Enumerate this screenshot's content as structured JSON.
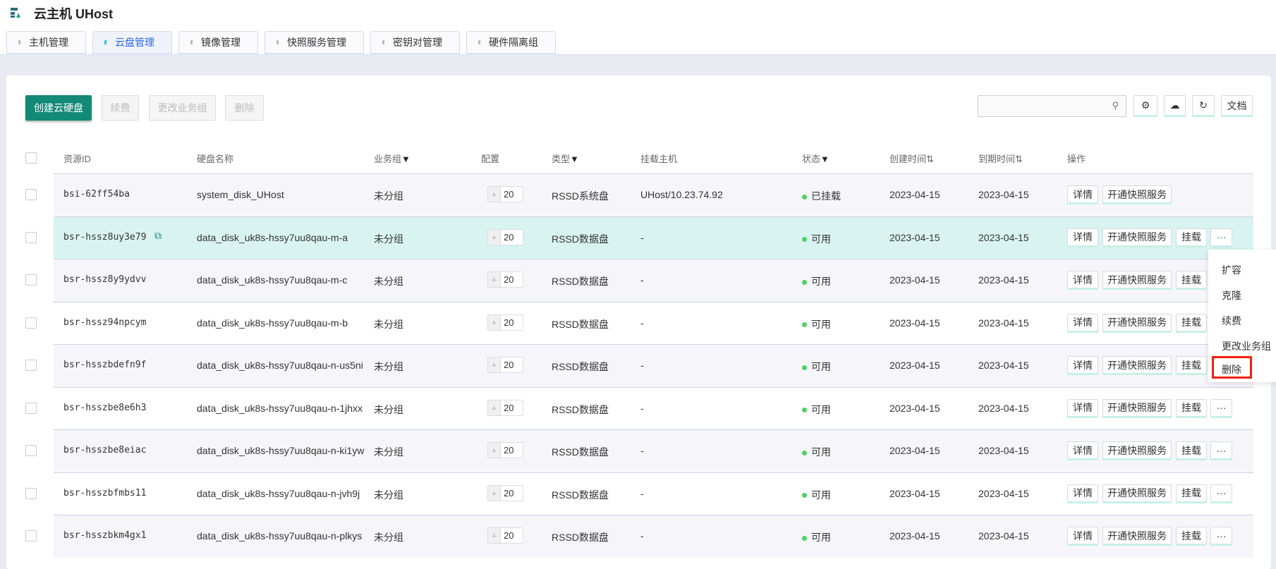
{
  "header": {
    "title": "云主机 UHost",
    "logo_icon": "uhost-logo-icon"
  },
  "tabs": [
    {
      "label": "主机管理"
    },
    {
      "label": "云盘管理",
      "active": true
    },
    {
      "label": "镜像管理"
    },
    {
      "label": "快照服务管理"
    },
    {
      "label": "密钥对管理"
    },
    {
      "label": "硬件隔离组"
    }
  ],
  "toolbar": {
    "create": "创建云硬盘",
    "renew": "续费",
    "change_group": "更改业务组",
    "delete": "删除",
    "search_placeholder": "",
    "docs": "文档"
  },
  "columns": {
    "id": "资源ID",
    "name": "硬盘名称",
    "group": "业务组",
    "config": "配置",
    "type": "类型",
    "host": "挂载主机",
    "status": "状态",
    "created": "创建时间",
    "expire": "到期时间",
    "ops": "操作"
  },
  "ops": {
    "detail": "详情",
    "snapshot": "开通快照服务",
    "mount": "挂载",
    "more": "···"
  },
  "rows": [
    {
      "id": "bsi-62ff54ba",
      "name": "system_disk_UHost",
      "group": "未分组",
      "size": "20",
      "type": "RSSD系统盘",
      "host": "UHost/10.23.74.92",
      "status": "已挂载",
      "created": "2023-04-15",
      "expire": "2023-04-15"
    },
    {
      "id": "bsr-hssz8uy3e79",
      "name": "data_disk_uk8s-hssy7uu8qau-m-a",
      "group": "未分组",
      "size": "20",
      "type": "RSSD数据盘",
      "host": "-",
      "status": "可用",
      "created": "2023-04-15",
      "expire": "2023-04-15"
    },
    {
      "id": "bsr-hssz8y9ydvv",
      "name": "data_disk_uk8s-hssy7uu8qau-m-c",
      "group": "未分组",
      "size": "20",
      "type": "RSSD数据盘",
      "host": "-",
      "status": "可用",
      "created": "2023-04-15",
      "expire": "2023-04-15"
    },
    {
      "id": "bsr-hssz94npcym",
      "name": "data_disk_uk8s-hssy7uu8qau-m-b",
      "group": "未分组",
      "size": "20",
      "type": "RSSD数据盘",
      "host": "-",
      "status": "可用",
      "created": "2023-04-15",
      "expire": "2023-04-15"
    },
    {
      "id": "bsr-hsszbdefn9f",
      "name": "data_disk_uk8s-hssy7uu8qau-n-us5ni",
      "group": "未分组",
      "size": "20",
      "type": "RSSD数据盘",
      "host": "-",
      "status": "可用",
      "created": "2023-04-15",
      "expire": "2023-04-15"
    },
    {
      "id": "bsr-hsszbe8e6h3",
      "name": "data_disk_uk8s-hssy7uu8qau-n-1jhxx",
      "group": "未分组",
      "size": "20",
      "type": "RSSD数据盘",
      "host": "-",
      "status": "可用",
      "created": "2023-04-15",
      "expire": "2023-04-15"
    },
    {
      "id": "bsr-hsszbe8eiac",
      "name": "data_disk_uk8s-hssy7uu8qau-n-ki1yw",
      "group": "未分组",
      "size": "20",
      "type": "RSSD数据盘",
      "host": "-",
      "status": "可用",
      "created": "2023-04-15",
      "expire": "2023-04-15"
    },
    {
      "id": "bsr-hsszbfmbs11",
      "name": "data_disk_uk8s-hssy7uu8qau-n-jvh9j",
      "group": "未分组",
      "size": "20",
      "type": "RSSD数据盘",
      "host": "-",
      "status": "可用",
      "created": "2023-04-15",
      "expire": "2023-04-15"
    },
    {
      "id": "bsr-hsszbkm4gx1",
      "name": "data_disk_uk8s-hssy7uu8qau-n-plkys",
      "group": "未分组",
      "size": "20",
      "type": "RSSD数据盘",
      "host": "-",
      "status": "可用",
      "created": "2023-04-15",
      "expire": "2023-04-15"
    }
  ],
  "more_menu": {
    "items": [
      "扩容",
      "克隆",
      "续费",
      "更改业务组",
      "删除"
    ],
    "highlighted": "删除",
    "highlight_color": "#f2200f"
  },
  "colors": {
    "primary": "#138a77",
    "active_tab": "#2f6ae8",
    "status_ok": "#4cd263",
    "row_highlight": "#d9f4f0"
  }
}
